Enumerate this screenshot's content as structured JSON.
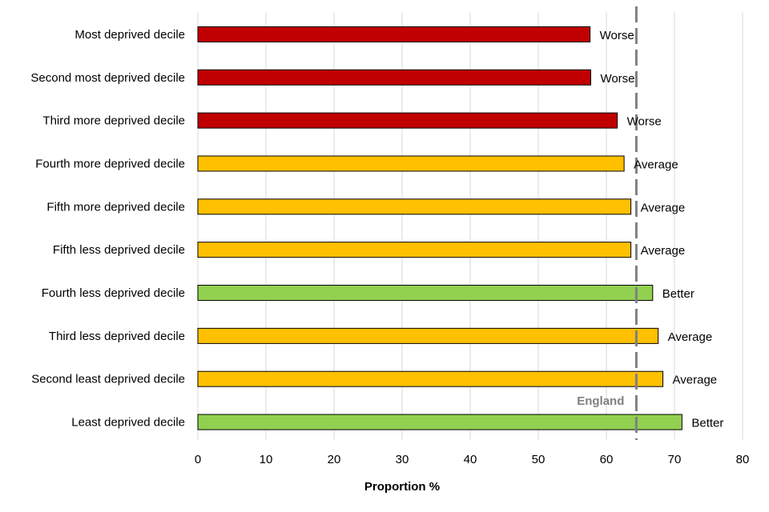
{
  "chart_data": {
    "type": "bar",
    "orientation": "horizontal",
    "categories": [
      "Most deprived decile",
      "Second most deprived decile",
      "Third more deprived decile",
      "Fourth more deprived decile",
      "Fifth more deprived decile",
      "Fifth less deprived decile",
      "Fourth less deprived decile",
      "Third less deprived decile",
      "Second least deprived decile",
      "Least deprived decile"
    ],
    "values": [
      57.6,
      57.7,
      61.6,
      62.6,
      63.6,
      63.6,
      66.8,
      67.6,
      68.3,
      71.1
    ],
    "status_labels": [
      "Worse",
      "Worse",
      "Worse",
      "Average",
      "Average",
      "Average",
      "Better",
      "Average",
      "Average",
      "Better"
    ],
    "status_colors": {
      "Worse": "#c00000",
      "Average": "#ffc000",
      "Better": "#92d050"
    },
    "reference_line": {
      "label": "England",
      "value": 64.4,
      "color": "#808080"
    },
    "xlabel": "Proportion %",
    "xlim": [
      0,
      80
    ],
    "xticks": [
      0,
      10,
      20,
      30,
      40,
      50,
      60,
      70,
      80
    ],
    "grid": "vertical"
  }
}
